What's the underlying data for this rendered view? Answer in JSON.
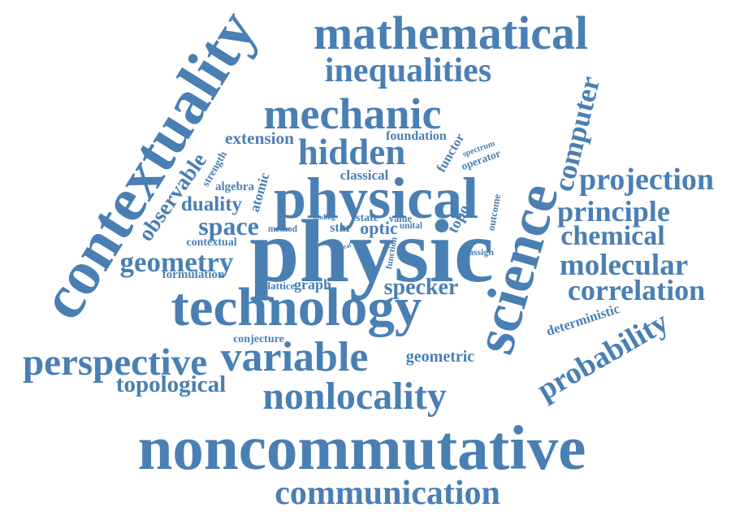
{
  "word_cloud": {
    "color": "#4a7fb3",
    "words": [
      "contextuality",
      "mathematical",
      "inequalities",
      "mechanic",
      "hidden",
      "extension",
      "foundation",
      "functor",
      "spectrum",
      "operator",
      "computer",
      "strength",
      "observable",
      "algebra",
      "atomic",
      "classical",
      "physical",
      "science",
      "projection",
      "duality",
      "space",
      "outcome",
      "principle",
      "finding",
      "state",
      "value",
      "topo",
      "method",
      "star",
      "optic",
      "unital",
      "chemical",
      "contextual",
      "physic",
      "geometry",
      "ideal",
      "function",
      "assign",
      "molecular",
      "formulation",
      "lattice",
      "graph",
      "specker",
      "correlation",
      "technology",
      "deterministic",
      "conjecture",
      "probability",
      "perspective",
      "variable",
      "geometric",
      "topological",
      "nonlocality",
      "noncommutative",
      "communication"
    ]
  }
}
